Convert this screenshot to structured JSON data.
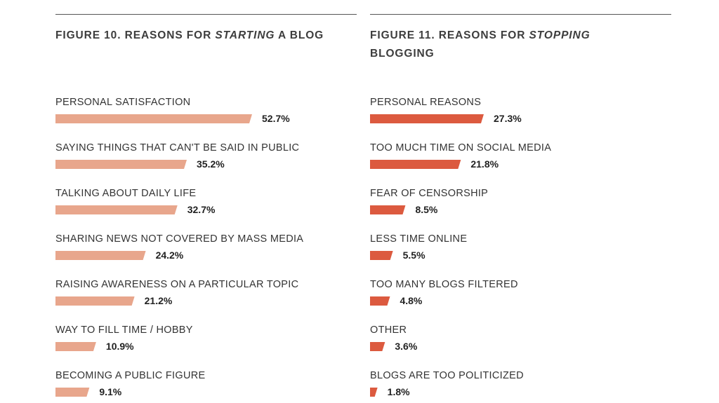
{
  "chart_data": [
    {
      "type": "bar",
      "title_parts": [
        "FIGURE 10. REASONS FOR ",
        "STARTING",
        " A BLOG"
      ],
      "color": "#e8a68c",
      "categories": [
        "PERSONAL SATISFACTION",
        "SAYING THINGS THAT CAN'T BE SAID IN PUBLIC",
        "TALKING ABOUT DAILY LIFE",
        "SHARING NEWS NOT COVERED BY MASS MEDIA",
        "RAISING AWARENESS ON A PARTICULAR TOPIC",
        "WAY TO FILL TIME / HOBBY",
        "BECOMING A PUBLIC FIGURE"
      ],
      "values": [
        52.7,
        35.2,
        32.7,
        24.2,
        21.2,
        10.9,
        9.1
      ],
      "value_labels": [
        "52.7%",
        "35.2%",
        "32.7%",
        "24.2%",
        "21.2%",
        "10.9%",
        "9.1%"
      ],
      "unit": "%"
    },
    {
      "type": "bar",
      "title_parts": [
        "FIGURE 11. REASONS FOR ",
        "STOPPING",
        " BLOGGING"
      ],
      "color": "#dc5a3f",
      "categories": [
        "PERSONAL REASONS",
        "TOO MUCH TIME ON SOCIAL MEDIA",
        "FEAR OF CENSORSHIP",
        "LESS TIME ONLINE",
        "TOO MANY BLOGS FILTERED",
        "OTHER",
        "BLOGS ARE TOO POLITICIZED"
      ],
      "values": [
        27.3,
        21.8,
        8.5,
        5.5,
        4.8,
        3.6,
        1.8
      ],
      "value_labels": [
        "27.3%",
        "21.8%",
        "8.5%",
        "5.5%",
        "4.8%",
        "3.6%",
        "1.8%"
      ],
      "unit": "%"
    }
  ]
}
